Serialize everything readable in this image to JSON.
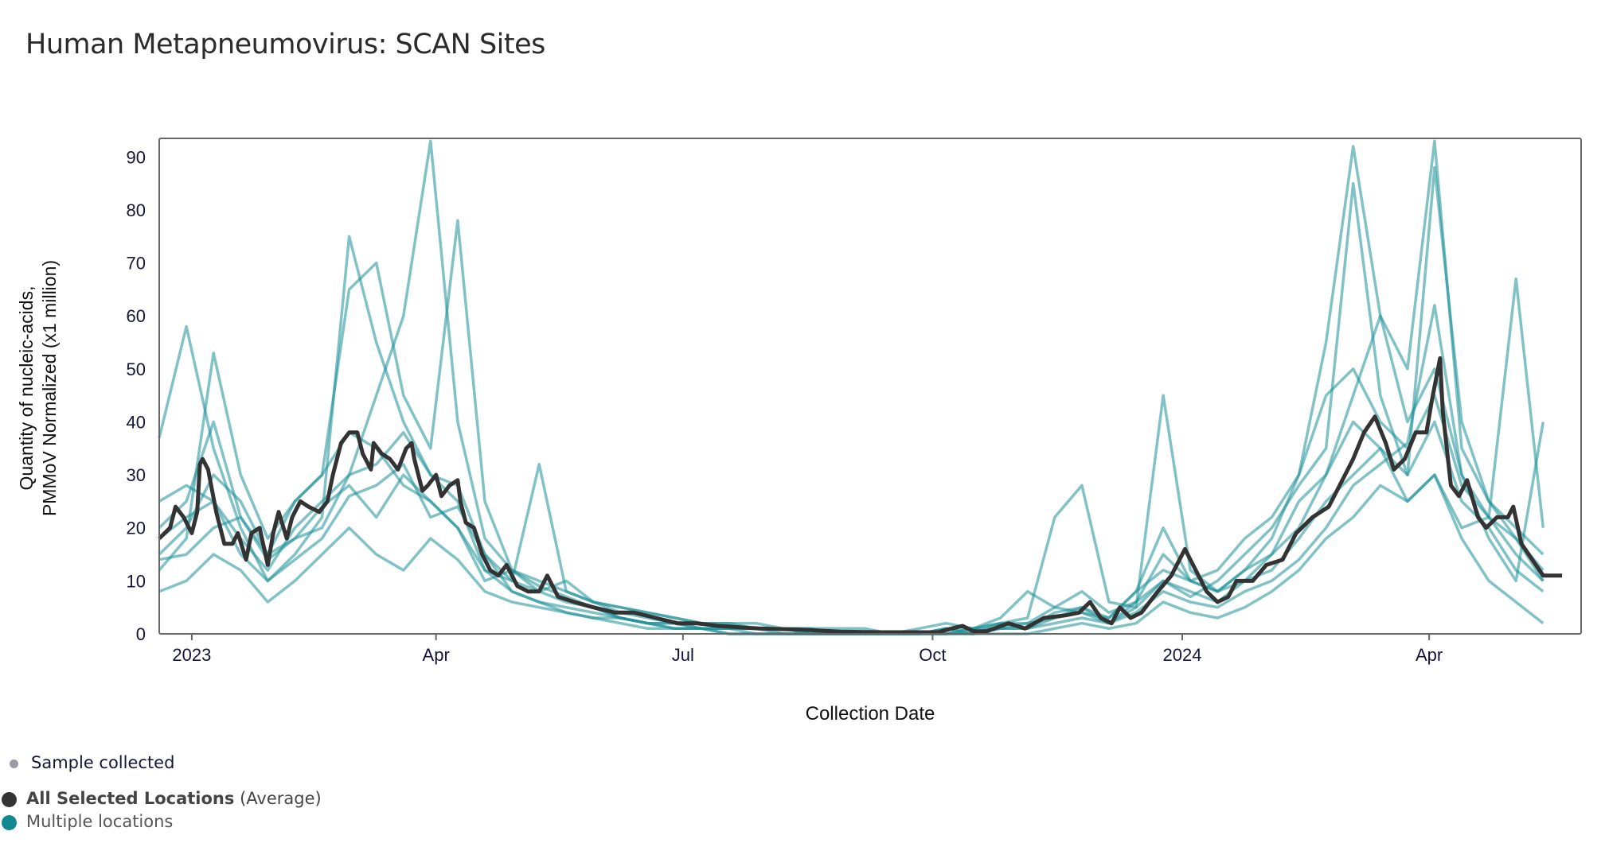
{
  "title": "Human Metapneumovirus: SCAN Sites",
  "legend": {
    "sample": "Sample collected",
    "average_bold": "All Selected Locations",
    "average_suffix": "(Average)",
    "sites": "Multiple locations"
  },
  "colors": {
    "sample": "#9a9aa8",
    "average": "#333333",
    "sites": "#1a8f98"
  },
  "chart_data": {
    "type": "line",
    "title": "Human Metapneumovirus: SCAN Sites",
    "xlabel": "Collection Date",
    "ylabel_line1": "Quantity of nucleic-acids,",
    "ylabel_line2": "PMMoV Normalized (x1 million)",
    "x_unit": "days since 2023-01-01",
    "xlim": [
      -12,
      512
    ],
    "ylim": [
      0,
      93.5
    ],
    "grid": false,
    "yticks": [
      0,
      10,
      20,
      30,
      40,
      50,
      60,
      70,
      80,
      90
    ],
    "xticks": [
      {
        "value": 0,
        "label": "2023"
      },
      {
        "value": 90,
        "label": "Apr"
      },
      {
        "value": 181,
        "label": "Jul"
      },
      {
        "value": 273,
        "label": "Oct"
      },
      {
        "value": 365,
        "label": "2024"
      },
      {
        "value": 456,
        "label": "Apr"
      }
    ],
    "average": {
      "name": "All Selected Locations (Average)",
      "points": [
        [
          -12,
          18
        ],
        [
          -8,
          20
        ],
        [
          -6,
          24
        ],
        [
          -3,
          22
        ],
        [
          0,
          19
        ],
        [
          2,
          23
        ],
        [
          3,
          32
        ],
        [
          4,
          33
        ],
        [
          6,
          31
        ],
        [
          9,
          23
        ],
        [
          12,
          17
        ],
        [
          15,
          17
        ],
        [
          17,
          19
        ],
        [
          20,
          14
        ],
        [
          22,
          19
        ],
        [
          25,
          20
        ],
        [
          28,
          13
        ],
        [
          30,
          19
        ],
        [
          32,
          23
        ],
        [
          35,
          18
        ],
        [
          37,
          22
        ],
        [
          40,
          25
        ],
        [
          43,
          24
        ],
        [
          47,
          23
        ],
        [
          50,
          25
        ],
        [
          52,
          30
        ],
        [
          55,
          36
        ],
        [
          58,
          38
        ],
        [
          61,
          38
        ],
        [
          63,
          34
        ],
        [
          66,
          31
        ],
        [
          67,
          36
        ],
        [
          70,
          34
        ],
        [
          73,
          33
        ],
        [
          76,
          31
        ],
        [
          79,
          35
        ],
        [
          81,
          36
        ],
        [
          82,
          33
        ],
        [
          85,
          27
        ],
        [
          87,
          28
        ],
        [
          90,
          30
        ],
        [
          92,
          26
        ],
        [
          95,
          28
        ],
        [
          98,
          29
        ],
        [
          99,
          25
        ],
        [
          101,
          21
        ],
        [
          104,
          20
        ],
        [
          107,
          15
        ],
        [
          110,
          12
        ],
        [
          113,
          11
        ],
        [
          116,
          13
        ],
        [
          120,
          9
        ],
        [
          124,
          8
        ],
        [
          128,
          8
        ],
        [
          131,
          11
        ],
        [
          135,
          7
        ],
        [
          141,
          6
        ],
        [
          148,
          5
        ],
        [
          156,
          4
        ],
        [
          163,
          4
        ],
        [
          171,
          3
        ],
        [
          179,
          2
        ],
        [
          186,
          2
        ],
        [
          194,
          1.5
        ],
        [
          209,
          1
        ],
        [
          224,
          0.8
        ],
        [
          239,
          0.4
        ],
        [
          254,
          0.3
        ],
        [
          269,
          0.3
        ],
        [
          275,
          0.3
        ],
        [
          280,
          1
        ],
        [
          284,
          1.5
        ],
        [
          288,
          0.5
        ],
        [
          293,
          0.5
        ],
        [
          301,
          2
        ],
        [
          307,
          1
        ],
        [
          314,
          3
        ],
        [
          322,
          3.5
        ],
        [
          327,
          4
        ],
        [
          331,
          6
        ],
        [
          335,
          3
        ],
        [
          339,
          2
        ],
        [
          342,
          5
        ],
        [
          346,
          3
        ],
        [
          350,
          4
        ],
        [
          356,
          8
        ],
        [
          361,
          11
        ],
        [
          366,
          16
        ],
        [
          374,
          8
        ],
        [
          378,
          6
        ],
        [
          382,
          7
        ],
        [
          385,
          10
        ],
        [
          391,
          10
        ],
        [
          396,
          13
        ],
        [
          402,
          14
        ],
        [
          407,
          19
        ],
        [
          413,
          22
        ],
        [
          419,
          24
        ],
        [
          423,
          28
        ],
        [
          428,
          33
        ],
        [
          432,
          38
        ],
        [
          436,
          41
        ],
        [
          440,
          36
        ],
        [
          443,
          31
        ],
        [
          447,
          33
        ],
        [
          451,
          38
        ],
        [
          455,
          38
        ],
        [
          457,
          44
        ],
        [
          460,
          52
        ],
        [
          461,
          42
        ],
        [
          464,
          28
        ],
        [
          467,
          26
        ],
        [
          470,
          29
        ],
        [
          474,
          22
        ],
        [
          477,
          20
        ],
        [
          481,
          22
        ],
        [
          485,
          22
        ],
        [
          487,
          24
        ],
        [
          490,
          17
        ],
        [
          494,
          14
        ],
        [
          498,
          11
        ],
        [
          502,
          11
        ],
        [
          505,
          11
        ]
      ]
    },
    "sites": {
      "name": "Multiple locations",
      "x_start": -12,
      "x_step": 10,
      "series": [
        [
          20,
          25,
          40,
          22,
          15,
          18,
          20,
          30,
          45,
          60,
          93,
          40,
          18,
          12,
          10,
          8,
          6,
          4,
          3,
          2,
          2,
          1,
          1,
          1,
          0,
          0,
          0,
          0,
          0,
          1,
          0,
          2,
          1,
          4,
          5,
          2,
          6,
          15,
          10,
          8,
          12,
          15,
          25,
          30,
          45,
          60,
          50,
          93,
          35,
          25,
          18,
          10
        ],
        [
          37,
          58,
          35,
          20,
          10,
          15,
          22,
          75,
          55,
          40,
          30,
          25,
          12,
          10,
          8,
          6,
          5,
          3,
          2,
          2,
          1,
          1,
          1,
          0,
          0,
          0,
          0,
          0,
          0,
          0,
          1,
          1,
          2,
          3,
          5,
          3,
          8,
          20,
          10,
          8,
          12,
          18,
          30,
          55,
          92,
          60,
          40,
          50,
          30,
          22,
          15,
          10
        ],
        [
          12,
          18,
          53,
          30,
          18,
          25,
          30,
          65,
          70,
          45,
          35,
          78,
          25,
          12,
          9,
          7,
          5,
          3,
          2,
          2,
          1,
          1,
          1,
          1,
          0,
          0,
          0,
          0,
          0,
          1,
          1,
          2,
          2,
          5,
          8,
          4,
          6,
          10,
          7,
          10,
          15,
          20,
          28,
          35,
          85,
          45,
          30,
          88,
          40,
          25,
          20,
          15
        ],
        [
          8,
          10,
          15,
          12,
          6,
          10,
          15,
          20,
          15,
          12,
          18,
          14,
          8,
          6,
          5,
          4,
          3,
          2,
          1,
          1,
          1,
          0,
          0,
          0,
          0,
          0,
          0,
          0,
          0,
          0,
          0,
          0,
          0,
          1,
          2,
          1,
          2,
          6,
          4,
          3,
          5,
          8,
          12,
          18,
          22,
          28,
          25,
          30,
          18,
          10,
          6,
          2
        ],
        [
          15,
          20,
          30,
          25,
          15,
          25,
          30,
          38,
          35,
          28,
          25,
          20,
          10,
          12,
          8,
          10,
          6,
          5,
          4,
          3,
          2,
          2,
          1,
          1,
          1,
          0,
          0,
          0,
          0,
          1,
          0,
          1,
          1,
          3,
          4,
          2,
          5,
          45,
          12,
          8,
          10,
          15,
          20,
          30,
          40,
          35,
          30,
          40,
          25,
          20,
          12,
          8
        ],
        [
          25,
          28,
          25,
          18,
          12,
          20,
          25,
          30,
          32,
          38,
          30,
          28,
          15,
          10,
          32,
          8,
          6,
          5,
          4,
          3,
          2,
          2,
          2,
          1,
          1,
          1,
          1,
          0,
          1,
          2,
          1,
          3,
          8,
          5,
          4,
          3,
          8,
          12,
          10,
          12,
          18,
          22,
          30,
          45,
          50,
          40,
          35,
          45,
          28,
          22,
          18,
          12
        ],
        [
          14,
          15,
          20,
          22,
          14,
          18,
          24,
          28,
          22,
          30,
          25,
          20,
          12,
          8,
          6,
          5,
          4,
          3,
          2,
          1,
          1,
          1,
          0,
          0,
          0,
          0,
          0,
          0,
          0,
          0,
          1,
          2,
          3,
          22,
          28,
          6,
          5,
          10,
          8,
          6,
          10,
          12,
          18,
          25,
          30,
          35,
          25,
          30,
          20,
          22,
          67,
          20
        ],
        [
          18,
          22,
          25,
          15,
          10,
          14,
          18,
          26,
          28,
          32,
          22,
          24,
          15,
          8,
          6,
          4,
          3,
          3,
          2,
          1,
          1,
          0,
          0,
          0,
          0,
          0,
          0,
          0,
          0,
          0,
          0,
          1,
          1,
          2,
          3,
          2,
          4,
          8,
          6,
          5,
          8,
          10,
          14,
          20,
          28,
          32,
          36,
          62,
          30,
          18,
          10,
          40
        ]
      ]
    }
  }
}
